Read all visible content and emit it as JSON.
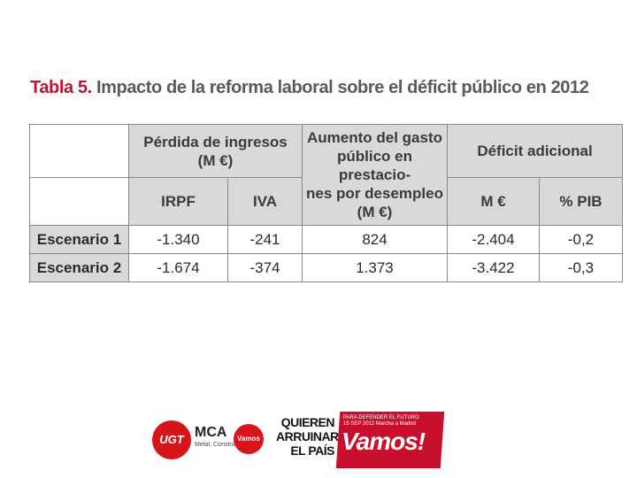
{
  "title": {
    "lead": "Tabla 5.",
    "text": "Impacto de la reforma laboral sobre el déficit público en 2012"
  },
  "table": {
    "group_headers": {
      "perdida": [
        "Pérdida de ingresos",
        "(M €)"
      ],
      "aumento": [
        "Aumento del gasto",
        "público en prestacio-",
        "nes por desempleo",
        "(M €)"
      ],
      "deficit": "Déficit adicional"
    },
    "sub_headers": {
      "irpf": "IRPF",
      "iva": "IVA",
      "meur": "M €",
      "pib": "% PIB"
    },
    "rows": [
      {
        "label": "Escenario 1",
        "irpf": "-1.340",
        "iva": "-241",
        "gasto": "824",
        "meur": "-2.404",
        "pib": "-0,2"
      },
      {
        "label": "Escenario 2",
        "irpf": "-1.674",
        "iva": "-374",
        "gasto": "1.373",
        "meur": "-3.422",
        "pib": "-0,3"
      }
    ]
  },
  "footer": {
    "ugt": "UGT",
    "mca": "MCA",
    "mca_sub": "Metal, Construcción",
    "vamos_small": "Vamos",
    "quieren": [
      "QUIEREN",
      "ARRUINAR",
      "EL PAÍS"
    ],
    "banner_small": [
      "PARA DEFENDER EL FUTURO",
      "15 SEP 2012 Marcha a Madrid"
    ],
    "banner_big": "Vamos!",
    "brand_red": "#c8102e"
  }
}
